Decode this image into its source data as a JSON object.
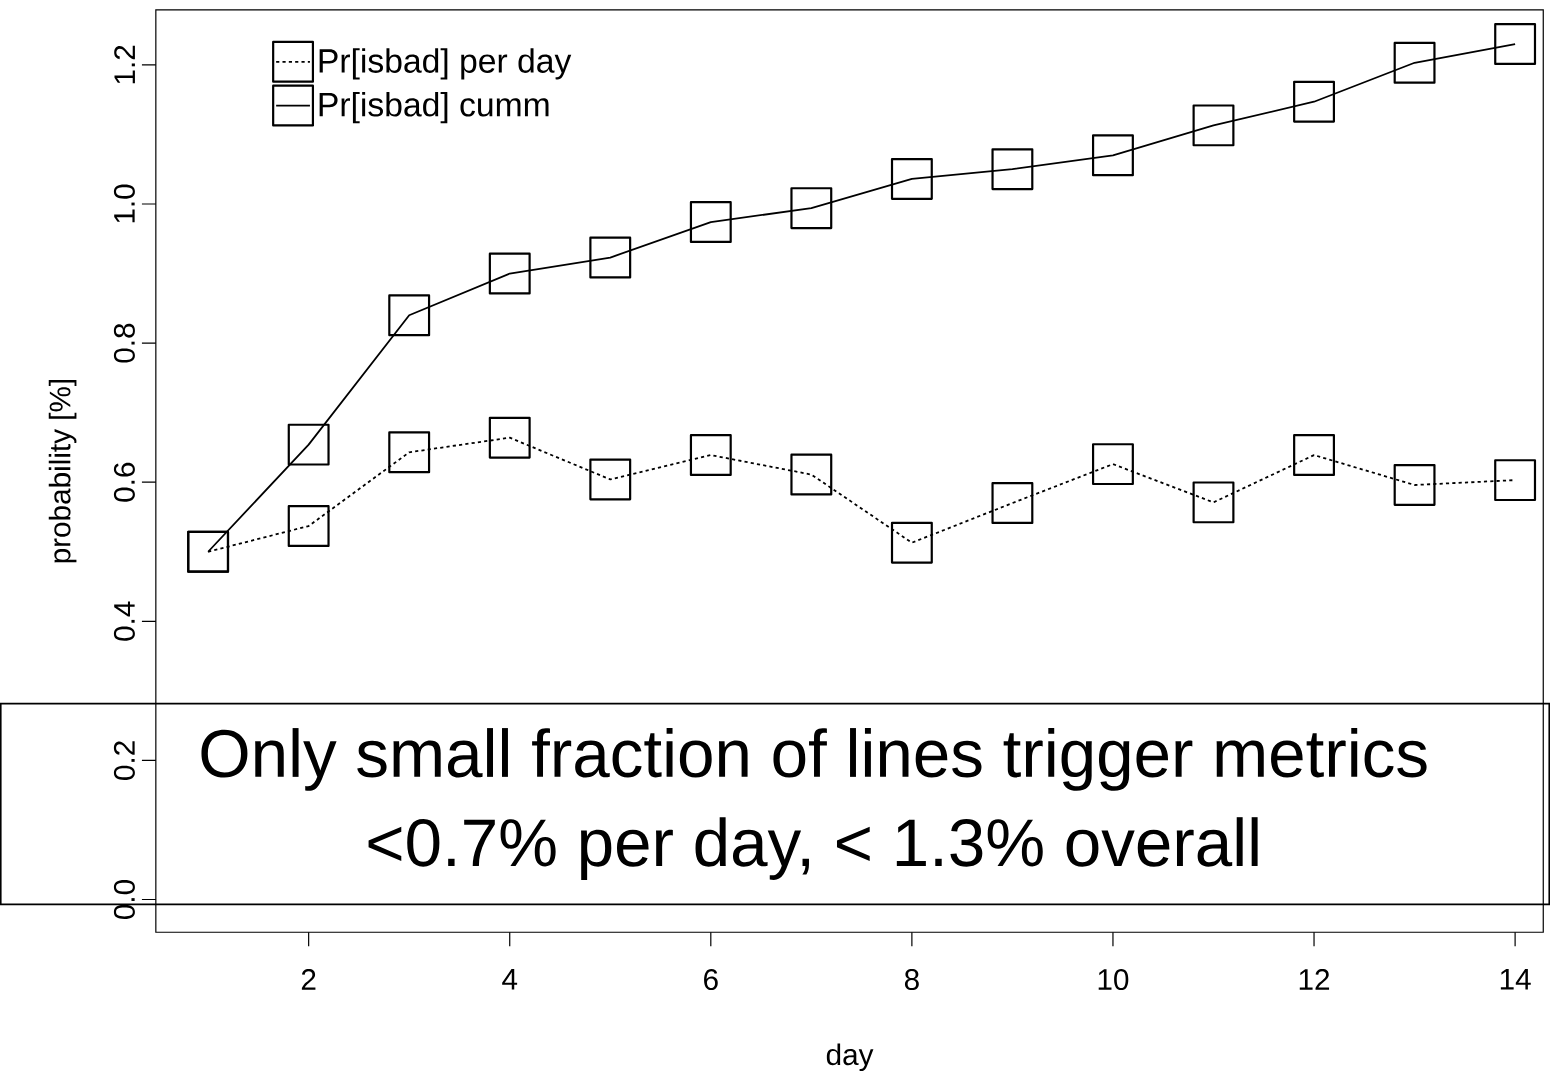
{
  "chart_data": {
    "type": "line",
    "x": [
      1,
      2,
      3,
      4,
      5,
      6,
      7,
      8,
      9,
      10,
      11,
      12,
      13,
      14
    ],
    "series": [
      {
        "name": "Pr[isbad] per day",
        "color": "#000000",
        "marker": "square",
        "line_style": "dotted",
        "values": [
          0.5,
          0.537,
          0.643,
          0.664,
          0.604,
          0.639,
          0.611,
          0.513,
          0.57,
          0.626,
          0.571,
          0.639,
          0.596,
          0.603
        ]
      },
      {
        "name": "Pr[isbad] cumm",
        "color": "#000000",
        "marker": "square",
        "line_style": "solid",
        "values": [
          0.5,
          0.654,
          0.84,
          0.9,
          0.923,
          0.974,
          0.994,
          1.036,
          1.05,
          1.07,
          1.113,
          1.147,
          1.203,
          1.23
        ]
      }
    ],
    "xlabel": "day",
    "ylabel": "probability [%]",
    "xlim": [
      0.48,
      14.28
    ],
    "ylim": [
      -0.047,
      1.279
    ],
    "xticks": [
      2,
      4,
      6,
      8,
      10,
      12,
      14
    ],
    "yticks": [
      {
        "value": 0,
        "label": "0.0"
      },
      {
        "value": 0.2,
        "label": "0.2"
      },
      {
        "value": 0.4,
        "label": "0.4"
      },
      {
        "value": 0.6,
        "label": "0.6"
      },
      {
        "value": 0.8,
        "label": "0.8"
      },
      {
        "value": 1.0,
        "label": "1.0"
      },
      {
        "value": 1.2,
        "label": "1.2"
      }
    ],
    "grid": false,
    "legend": "top left",
    "annotations": [
      "Only small fraction of lines trigger metrics",
      "<0.7% per day, < 1.3% overall"
    ]
  }
}
